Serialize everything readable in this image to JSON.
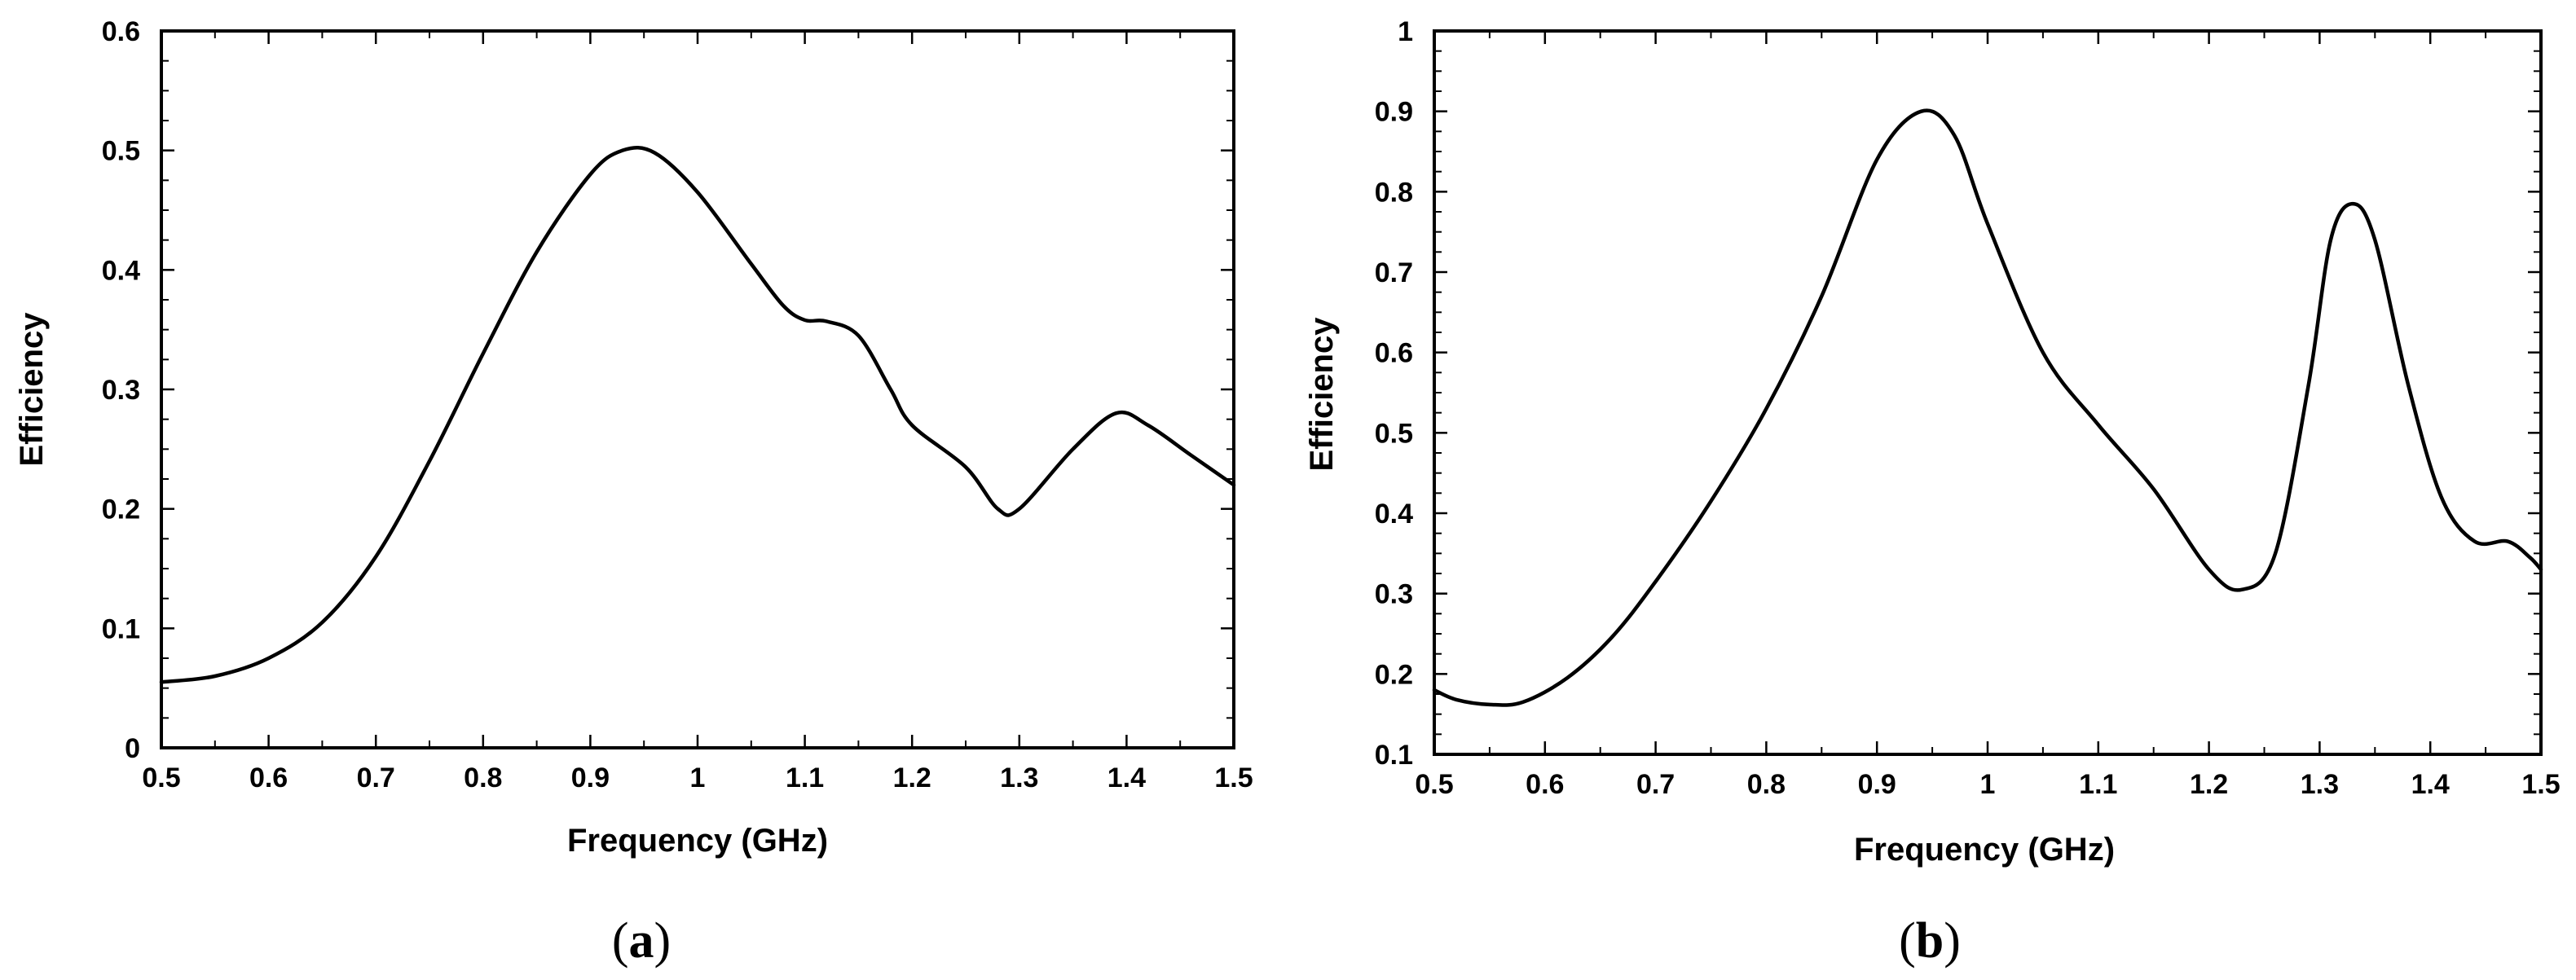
{
  "chart_data": [
    {
      "type": "line",
      "panel_label": "(a)",
      "panel_label_parts": {
        "open": "(",
        "letter": "a",
        "close": ")"
      },
      "title": "",
      "xlabel": "Frequency (GHz)",
      "ylabel": "Efficiency",
      "xlim": [
        0.5,
        1.5
      ],
      "ylim": [
        0,
        0.6
      ],
      "x_ticks": [
        0.5,
        0.6,
        0.7,
        0.8,
        0.9,
        1,
        1.1,
        1.2,
        1.3,
        1.4,
        1.5
      ],
      "x_tick_labels": [
        "0.5",
        "0.6",
        "0.7",
        "0.8",
        "0.9",
        "1",
        "1.1",
        "1.2",
        "1.3",
        "1.4",
        "1.5"
      ],
      "y_ticks": [
        0,
        0.1,
        0.2,
        0.3,
        0.4,
        0.5,
        0.6
      ],
      "y_tick_labels": [
        "0",
        "0.1",
        "0.2",
        "0.3",
        "0.4",
        "0.5",
        "0.6"
      ],
      "grid": false,
      "line_color": "#000000",
      "series": [
        {
          "x": [
            0.5,
            0.55,
            0.6,
            0.65,
            0.7,
            0.75,
            0.8,
            0.85,
            0.9,
            0.93,
            0.96,
            1.0,
            1.05,
            1.08,
            1.1,
            1.12,
            1.15,
            1.18,
            1.2,
            1.25,
            1.28,
            1.3,
            1.35,
            1.39,
            1.42,
            1.46,
            1.5
          ],
          "y": [
            0.055,
            0.06,
            0.075,
            0.105,
            0.16,
            0.24,
            0.33,
            0.415,
            0.48,
            0.5,
            0.498,
            0.465,
            0.405,
            0.37,
            0.358,
            0.357,
            0.345,
            0.3,
            0.27,
            0.235,
            0.2,
            0.2,
            0.25,
            0.28,
            0.27,
            0.245,
            0.22
          ]
        }
      ]
    },
    {
      "type": "line",
      "panel_label": "(b)",
      "panel_label_parts": {
        "open": "(",
        "letter": "b",
        "close": ")"
      },
      "title": "",
      "xlabel": "Frequency (GHz)",
      "ylabel": "Efficiency",
      "xlim": [
        0.5,
        1.5
      ],
      "ylim": [
        0.1,
        1
      ],
      "x_ticks": [
        0.5,
        0.6,
        0.7,
        0.8,
        0.9,
        1,
        1.1,
        1.2,
        1.3,
        1.4,
        1.5
      ],
      "x_tick_labels": [
        "0.5",
        "0.6",
        "0.7",
        "0.8",
        "0.9",
        "1",
        "1.1",
        "1.2",
        "1.3",
        "1.4",
        "1.5"
      ],
      "y_ticks": [
        0.1,
        0.2,
        0.3,
        0.4,
        0.5,
        0.6,
        0.7,
        0.8,
        0.9,
        1
      ],
      "y_tick_labels": [
        "0.1",
        "0.2",
        "0.3",
        "0.4",
        "0.5",
        "0.6",
        "0.7",
        "0.8",
        "0.9",
        "1"
      ],
      "grid": false,
      "line_color": "#000000",
      "series": [
        {
          "x": [
            0.5,
            0.52,
            0.55,
            0.58,
            0.62,
            0.66,
            0.7,
            0.75,
            0.8,
            0.85,
            0.9,
            0.94,
            0.97,
            1.0,
            1.05,
            1.1,
            1.15,
            1.2,
            1.23,
            1.26,
            1.29,
            1.31,
            1.33,
            1.35,
            1.38,
            1.41,
            1.44,
            1.47,
            1.49,
            1.5
          ],
          "y": [
            0.18,
            0.168,
            0.162,
            0.165,
            0.195,
            0.245,
            0.315,
            0.415,
            0.53,
            0.67,
            0.84,
            0.9,
            0.87,
            0.76,
            0.6,
            0.51,
            0.43,
            0.33,
            0.305,
            0.35,
            0.56,
            0.74,
            0.785,
            0.74,
            0.56,
            0.42,
            0.365,
            0.365,
            0.345,
            0.33
          ]
        }
      ]
    }
  ]
}
